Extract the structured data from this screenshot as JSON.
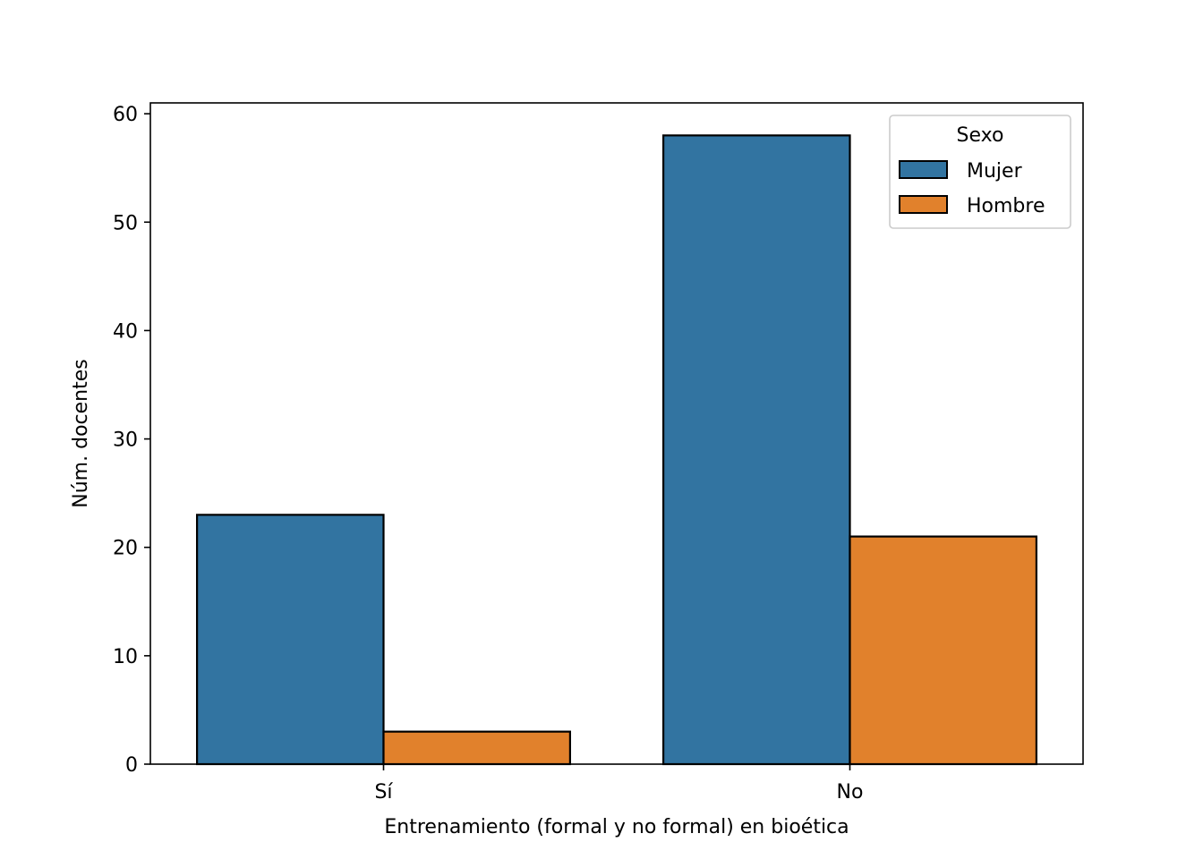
{
  "chart_data": {
    "type": "bar",
    "title": "",
    "xlabel": "Entrenamiento (formal y no formal) en bioética",
    "ylabel": "Núm. docentes",
    "categories": [
      "Sí",
      "No"
    ],
    "ylim": [
      0,
      61
    ],
    "yticks": [
      0,
      10,
      20,
      30,
      40,
      50,
      60
    ],
    "series": [
      {
        "name": "Mujer",
        "values": [
          23,
          58
        ],
        "color": "#3274a1"
      },
      {
        "name": "Hombre",
        "values": [
          3,
          21
        ],
        "color": "#e1812c"
      }
    ],
    "legend": {
      "title": "Sexo",
      "position": "top-right"
    },
    "grid": false
  }
}
